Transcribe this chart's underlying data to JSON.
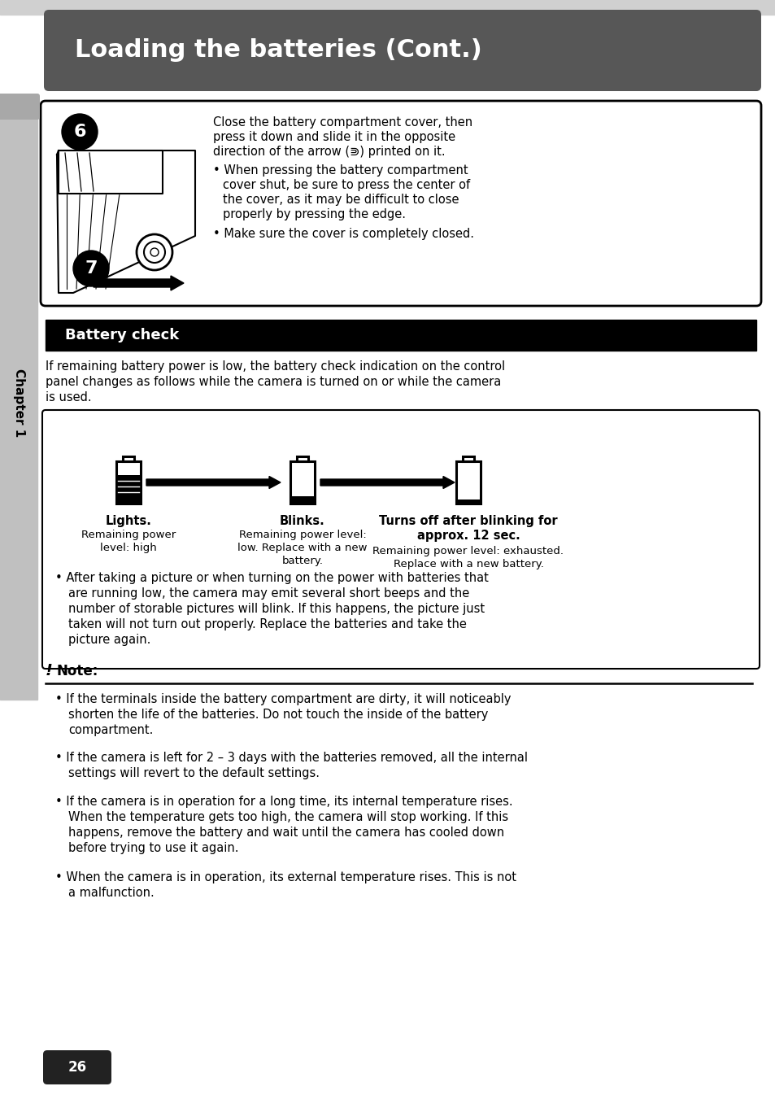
{
  "title": "Loading the batteries (Cont.)",
  "title_bg": "#575757",
  "page_bg": "#ffffff",
  "sidebar_bg": "#bbbbbb",
  "sidebar_text": "Chapter 1",
  "battery_check_bg": "#000000",
  "battery_check_title": "Battery check",
  "step6_main_l1": "Close the battery compartment cover, then",
  "step6_main_l2": "press it down and slide it in the opposite",
  "step6_main_l3": "direction of the arrow (⋑) printed on it.",
  "step6_b1_l1": "When pressing the battery compartment",
  "step6_b1_l2": "cover shut, be sure to press the center of",
  "step6_b1_l3": "the cover, as it may be difficult to close",
  "step6_b1_l4": "properly by pressing the edge.",
  "step6_b2": "Make sure the cover is completely closed.",
  "bc_para_l1": "If remaining battery power is low, the battery check indication on the control",
  "bc_para_l2": "panel changes as follows while the camera is turned on or while the camera",
  "bc_para_l3": "is used.",
  "lights_label": "Lights.",
  "lights_desc1": "Remaining power",
  "lights_desc2": "level: high",
  "blinks_label": "Blinks.",
  "blinks_desc1": "Remaining power level:",
  "blinks_desc2": "low. Replace with a new",
  "blinks_desc3": "battery.",
  "turns_label1": "Turns off after blinking for",
  "turns_label2": "approx. 12 sec.",
  "turns_desc1": "Remaining power level: exhausted.",
  "turns_desc2": "Replace with a new battery.",
  "bullet_after_l1": "After taking a picture or when turning on the power with batteries that",
  "bullet_after_l2": "are running low, the camera may emit several short beeps and the",
  "bullet_after_l3": "number of storable pictures will blink. If this happens, the picture just",
  "bullet_after_l4": "taken will not turn out properly. Replace the batteries and take the",
  "bullet_after_l5": "picture again.",
  "note1_l1": "If the terminals inside the battery compartment are dirty, it will noticeably",
  "note1_l2": "shorten the life of the batteries. Do not touch the inside of the battery",
  "note1_l3": "compartment.",
  "note2_l1": "If the camera is left for 2 – 3 days with the batteries removed, all the internal",
  "note2_l2": "settings will revert to the default settings.",
  "note3_l1": "If the camera is in operation for a long time, its internal temperature rises.",
  "note3_l2": "When the temperature gets too high, the camera will stop working. If this",
  "note3_l3": "happens, remove the battery and wait until the camera has cooled down",
  "note3_l4": "before trying to use it again.",
  "note4_l1": "When the camera is in operation, its external temperature rises. This is not",
  "note4_l2": "a malfunction.",
  "page_number": "26"
}
